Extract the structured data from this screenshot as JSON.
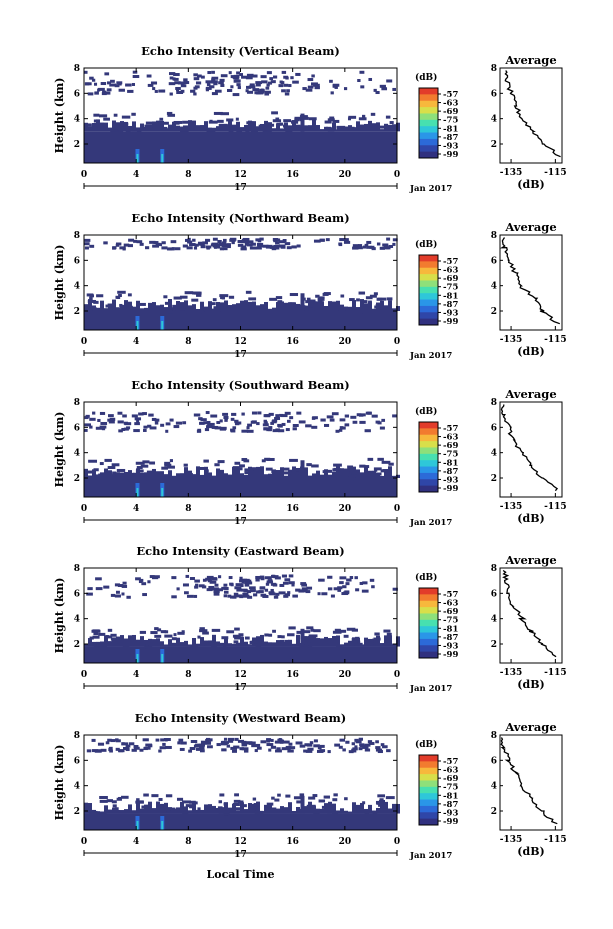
{
  "colors": {
    "background_echo": "#34387a",
    "colormap": [
      "#30307f",
      "#2f46a8",
      "#2c6ad8",
      "#2a96e8",
      "#2ec7d9",
      "#47e0b0",
      "#8ee07a",
      "#d8df4a",
      "#f7b83c",
      "#f27b2f",
      "#e23c2a"
    ]
  },
  "shared": {
    "height_label": "Height (km)",
    "colorbar_unit": "(dB)",
    "colorbar_ticks": [
      "-57",
      "-63",
      "-69",
      "-75",
      "-81",
      "-87",
      "-93",
      "-99"
    ],
    "time_ticks": [
      "0",
      "4",
      "8",
      "12",
      "16",
      "20",
      "0"
    ],
    "day_label": "17",
    "month_label": "Jan 2017",
    "xaxis_label": "Local Time",
    "avg_title": "Average",
    "avg_xticks": [
      "-135",
      "-115"
    ],
    "avg_xlabel": "(dB)",
    "height_ticks": [
      "2",
      "4",
      "6",
      "8"
    ]
  },
  "chart_data": [
    {
      "type": "heatmap",
      "title": "Echo Intensity (Vertical Beam)",
      "ylabel": "Height (km)",
      "xlim": [
        0,
        24
      ],
      "ylim": [
        0.5,
        8
      ],
      "dense_layer_top_km": 3.0,
      "upper_layer_km": [
        6.0,
        7.8
      ],
      "average_profile": {
        "xlim": [
          -140,
          -112
        ],
        "height_km": [
          7.8,
          7.0,
          6.0,
          5.0,
          4.0,
          3.0,
          2.0,
          1.0
        ],
        "value_db": [
          -138,
          -137,
          -135,
          -133,
          -130,
          -125,
          -120,
          -113
        ]
      }
    },
    {
      "type": "heatmap",
      "title": "Echo Intensity (Northward Beam)",
      "ylabel": "Height (km)",
      "xlim": [
        0,
        24
      ],
      "ylim": [
        0.5,
        8
      ],
      "dense_layer_top_km": 2.0,
      "upper_layer_km": [
        7.0,
        7.8
      ],
      "average_profile": {
        "xlim": [
          -140,
          -112
        ],
        "height_km": [
          7.8,
          7.0,
          6.0,
          5.0,
          4.0,
          3.0,
          2.0,
          1.0
        ],
        "value_db": [
          -139,
          -138,
          -136,
          -133,
          -131,
          -124,
          -121,
          -114
        ]
      }
    },
    {
      "type": "heatmap",
      "title": "Echo Intensity (Southward Beam)",
      "ylabel": "Height (km)",
      "xlim": [
        0,
        24
      ],
      "ylim": [
        0.5,
        8
      ],
      "dense_layer_top_km": 2.0,
      "upper_layer_km": [
        5.8,
        7.3
      ],
      "average_profile": {
        "xlim": [
          -140,
          -112
        ],
        "height_km": [
          7.8,
          7.0,
          6.0,
          5.0,
          4.0,
          3.0,
          2.0,
          1.0
        ],
        "value_db": [
          -139,
          -138,
          -136,
          -134,
          -130,
          -126,
          -121,
          -114
        ]
      }
    },
    {
      "type": "heatmap",
      "title": "Echo Intensity (Eastward Beam)",
      "ylabel": "Height (km)",
      "xlim": [
        0,
        24
      ],
      "ylim": [
        0.5,
        8
      ],
      "dense_layer_top_km": 1.8,
      "upper_layer_km": [
        5.8,
        7.5
      ],
      "average_profile": {
        "xlim": [
          -140,
          -112
        ],
        "height_km": [
          7.8,
          7.0,
          6.0,
          5.0,
          4.0,
          3.0,
          2.0,
          1.0
        ],
        "value_db": [
          -138,
          -137,
          -136,
          -134,
          -130,
          -126,
          -121,
          -115
        ]
      }
    },
    {
      "type": "heatmap",
      "title": "Echo Intensity (Westward Beam)",
      "ylabel": "Height (km)",
      "xlim": [
        0,
        24
      ],
      "ylim": [
        0.5,
        8
      ],
      "dense_layer_top_km": 1.8,
      "upper_layer_km": [
        6.8,
        7.8
      ],
      "average_profile": {
        "xlim": [
          -140,
          -112
        ],
        "height_km": [
          7.8,
          7.0,
          6.0,
          5.0,
          4.0,
          3.0,
          2.0,
          1.0
        ],
        "value_db": [
          -139,
          -138,
          -136,
          -133,
          -130,
          -126,
          -121,
          -115
        ]
      }
    }
  ]
}
